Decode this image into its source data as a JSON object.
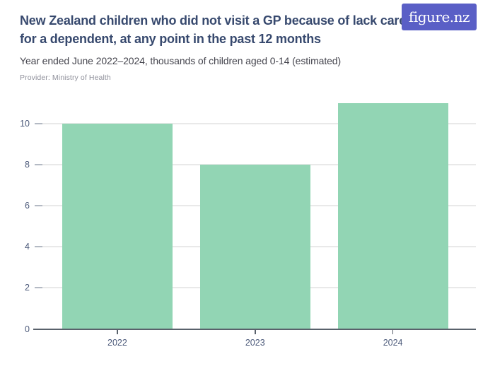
{
  "header": {
    "title": "New Zealand children who did not visit a GP because of lack care for a dependent, at any point in the past 12 months",
    "title_lines": [
      "New Zealand children who did not visit a GP because of lack care",
      "for a dependent, at any point in the past 12 months"
    ],
    "subtitle": "Year ended June 2022–2024, thousands of children aged 0-14 (estimated)",
    "provider": "Provider: Ministry of Health"
  },
  "logo": {
    "text": "figure.nz",
    "bg": "#5a5fc6",
    "fg": "#ffffff"
  },
  "chart_data": {
    "type": "bar",
    "title": "New Zealand children who did not visit a GP because of lack care for a dependent, at any point in the past 12 months",
    "subtitle": "Year ended June 2022–2024, thousands of children aged 0-14 (estimated)",
    "categories": [
      "2022",
      "2023",
      "2024"
    ],
    "values": [
      10,
      8,
      11
    ],
    "xlabel": "",
    "ylabel": "Thousands of children aged 0-14 (estimated)",
    "ylim": [
      0,
      11.05
    ],
    "yticks": [
      0,
      2,
      4,
      6,
      8,
      10
    ],
    "grid": true,
    "legend": false,
    "bar_color": "#92d5b4"
  },
  "colors": {
    "title": "#37496e",
    "subtitle": "#45454e",
    "provider": "#8f909b",
    "axis_line": "#59616b",
    "gridline": "#e9e9e9",
    "tick_stub": "#b4bac4",
    "tick_label": "#4c5a7a",
    "background": "#ffffff"
  }
}
